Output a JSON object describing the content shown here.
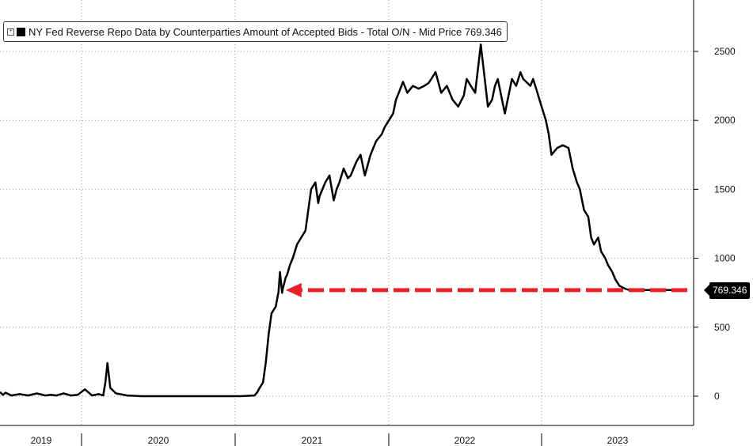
{
  "legend": {
    "expand_icon": "plus-box-icon",
    "label": "NY Fed Reverse Repo Data by Counterparties Amount of Accepted Bids - Total O/N - Mid Price 769.346",
    "color": "#000000"
  },
  "last_price_label": "769.346",
  "colors": {
    "line": "#000000",
    "arrow": "#e8202a",
    "grid": "#9a9a9a"
  },
  "chart_data": {
    "type": "line",
    "title": "NY Fed Reverse Repo Data by Counterparties Amount of Accepted Bids - Total O/N - Mid Price 769.346",
    "xlabel": "",
    "ylabel": "",
    "x_ticks": [
      "2019",
      "2020",
      "2021",
      "2022",
      "2023"
    ],
    "y_ticks": [
      0,
      500,
      1000,
      1500,
      2000,
      2500
    ],
    "xlim": [
      2019.0,
      2023.95
    ],
    "ylim": [
      -50,
      2850
    ],
    "grid": true,
    "legend_position": "top-left",
    "y_axis_side": "right",
    "last_value": 769.346,
    "annotation": {
      "type": "dashed-arrow",
      "color": "#e8202a",
      "from_x": 2023.86,
      "to_x": 2021.02,
      "y": 769.346
    },
    "series": [
      {
        "name": "Total O/N",
        "x": [
          2019.0,
          2019.02,
          2019.04,
          2019.08,
          2019.14,
          2019.2,
          2019.26,
          2019.32,
          2019.36,
          2019.4,
          2019.45,
          2019.5,
          2019.55,
          2019.6,
          2019.65,
          2019.7,
          2019.73,
          2019.745,
          2019.76,
          2019.78,
          2019.82,
          2019.9,
          2020.0,
          2020.2,
          2020.5,
          2020.7,
          2020.8,
          2020.82,
          2020.83,
          2020.86,
          2020.88,
          2020.9,
          2020.92,
          2020.95,
          2020.97,
          2020.98,
          2020.995,
          2021.0,
          2021.02,
          2021.03,
          2021.05,
          2021.07,
          2021.1,
          2021.13,
          2021.16,
          2021.2,
          2021.23,
          2021.25,
          2021.26,
          2021.28,
          2021.3,
          2021.33,
          2021.36,
          2021.38,
          2021.4,
          2021.43,
          2021.46,
          2021.48,
          2021.5,
          2021.52,
          2021.55,
          2021.58,
          2021.62,
          2021.64,
          2021.66,
          2021.7,
          2021.72,
          2021.75,
          2021.78,
          2021.8,
          2021.82,
          2021.85,
          2021.88,
          2021.92,
          2021.96,
          2022.0,
          2022.03,
          2022.05,
          2022.08,
          2022.12,
          2022.16,
          2022.2,
          2022.24,
          2022.28,
          2022.3,
          2022.33,
          2022.36,
          2022.4,
          2022.45,
          2022.48,
          2022.5,
          2022.52,
          2022.55,
          2022.57,
          2022.58,
          2022.6,
          2022.62,
          2022.65,
          2022.68,
          2022.7,
          2022.72,
          2022.75,
          2022.77,
          2022.8,
          2022.83,
          2022.86,
          2022.88,
          2022.9,
          2022.94,
          2022.98,
          2023.02,
          2023.05,
          2023.08,
          2023.1,
          2023.13,
          2023.16,
          2023.18,
          2023.2,
          2023.23,
          2023.25,
          2023.28,
          2023.3,
          2023.33,
          2023.35,
          2023.38,
          2023.42,
          2023.45,
          2023.48,
          2023.5,
          2023.52,
          2023.55,
          2023.58,
          2023.6,
          2023.62,
          2023.64,
          2023.66,
          2023.68,
          2023.7,
          2023.72,
          2023.74,
          2023.77,
          2023.8,
          2023.83,
          2023.85,
          2023.86
        ],
        "values": [
          30,
          10,
          25,
          5,
          15,
          5,
          20,
          5,
          10,
          5,
          20,
          5,
          10,
          50,
          5,
          15,
          5,
          100,
          240,
          60,
          20,
          5,
          0,
          0,
          0,
          0,
          5,
          30,
          50,
          100,
          250,
          450,
          600,
          650,
          760,
          900,
          750,
          780,
          860,
          880,
          950,
          1000,
          1100,
          1150,
          1200,
          1500,
          1550,
          1400,
          1450,
          1500,
          1550,
          1600,
          1420,
          1500,
          1550,
          1650,
          1580,
          1600,
          1650,
          1700,
          1750,
          1600,
          1750,
          1800,
          1850,
          1900,
          1950,
          2000,
          2050,
          2150,
          2200,
          2280,
          2200,
          2250,
          2230,
          2250,
          2270,
          2300,
          2350,
          2200,
          2250,
          2150,
          2100,
          2180,
          2300,
          2250,
          2200,
          2550,
          2100,
          2150,
          2250,
          2300,
          2150,
          2050,
          2100,
          2200,
          2300,
          2250,
          2350,
          2300,
          2280,
          2250,
          2300,
          2200,
          2100,
          2000,
          1900,
          1750,
          1800,
          1820,
          1800,
          1650,
          1550,
          1500,
          1350,
          1300,
          1150,
          1100,
          1150,
          1050,
          1000,
          950,
          900,
          850,
          800,
          780,
          769.346,
          769.346,
          769.346,
          769.346,
          769.346,
          769.346,
          769.346,
          769.346,
          769.346,
          769.346,
          769.346,
          769.346,
          769.346,
          769.346,
          769.346,
          769.346,
          769.346,
          769.346,
          769.346
        ]
      }
    ]
  }
}
